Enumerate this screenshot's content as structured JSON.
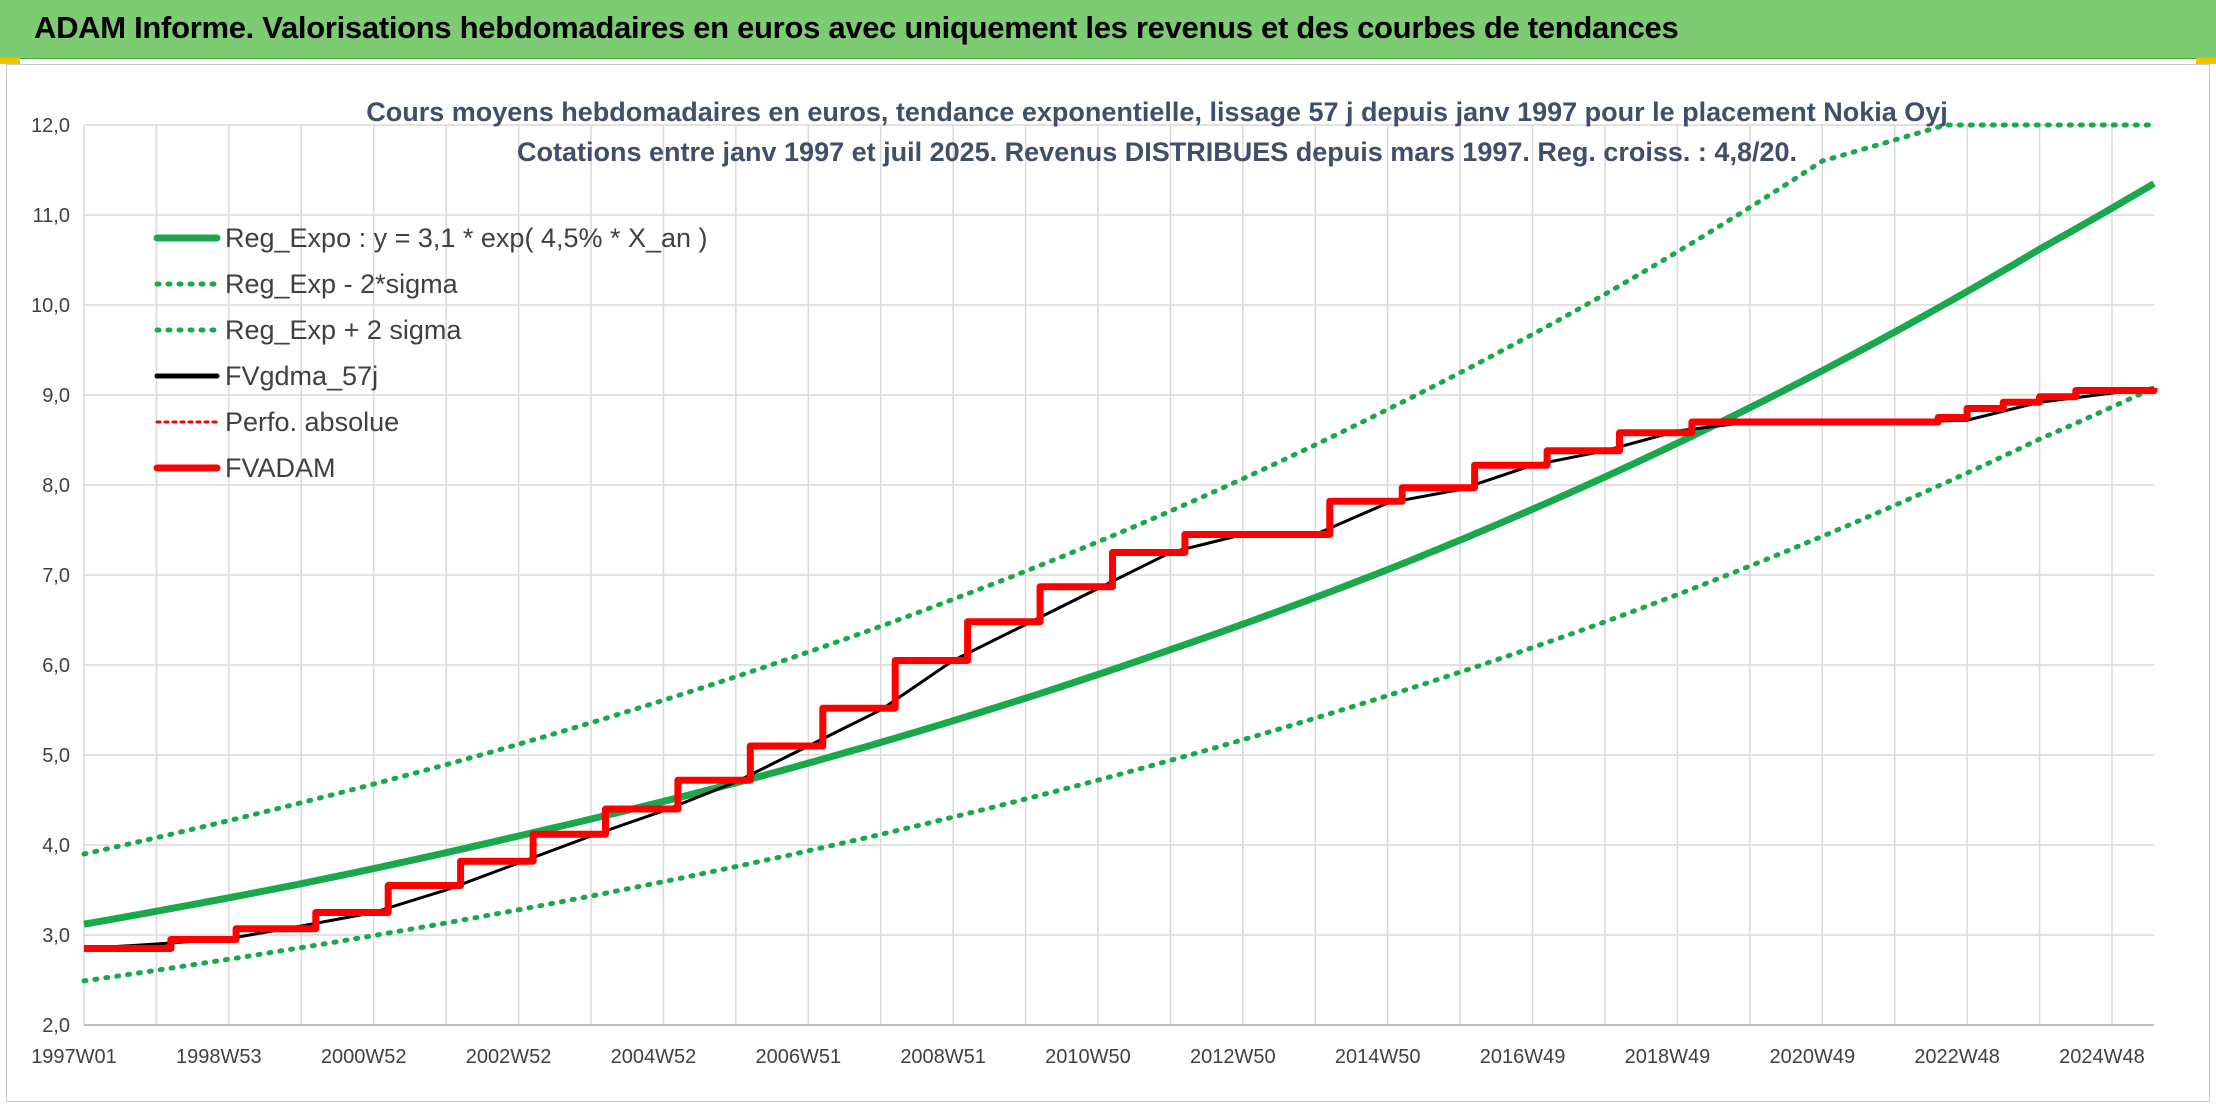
{
  "header": {
    "title": "ADAM Informe. Valorisations hebdomadaires en euros avec uniquement les revenus et des courbes de tendances"
  },
  "colors": {
    "header_bg": "#7dcb73",
    "green": "#19a84c",
    "black": "#000000",
    "red": "#ff0000",
    "grid": "#d9d9d9"
  },
  "chart_data": {
    "type": "line",
    "title_lines": [
      "Cours moyens hebdomadaires en euros, tendance exponentielle, lissage 57 j depuis janv 1997 pour le placement Nokia Oyj",
      "Cotations entre janv 1997 et juil 2025. Revenus DISTRIBUES depuis mars 1997. Reg. croiss. : 4,8/20."
    ],
    "ylim": [
      2.0,
      12.0
    ],
    "y_ticks": [
      "2,0",
      "3,0",
      "4,0",
      "5,0",
      "6,0",
      "7,0",
      "8,0",
      "9,0",
      "10,0",
      "11,0",
      "12,0"
    ],
    "x_range": [
      1997.0,
      2025.58
    ],
    "x_ticks": [
      {
        "label": "1997W01",
        "x": 1997.0
      },
      {
        "label": "1998W53",
        "x": 1999.0
      },
      {
        "label": "2000W52",
        "x": 2001.0
      },
      {
        "label": "2002W52",
        "x": 2003.0
      },
      {
        "label": "2004W52",
        "x": 2005.0
      },
      {
        "label": "2006W51",
        "x": 2007.0
      },
      {
        "label": "2008W51",
        "x": 2009.0
      },
      {
        "label": "2010W50",
        "x": 2011.0
      },
      {
        "label": "2012W50",
        "x": 2013.0
      },
      {
        "label": "2014W50",
        "x": 2015.0
      },
      {
        "label": "2016W49",
        "x": 2017.0
      },
      {
        "label": "2018W49",
        "x": 2019.0
      },
      {
        "label": "2020W49",
        "x": 2021.0
      },
      {
        "label": "2022W48",
        "x": 2023.0
      },
      {
        "label": "2024W48",
        "x": 2025.0
      }
    ],
    "grid": true,
    "legend_position": "top-left",
    "series": [
      {
        "name": "Reg_Expo : y = 3,1 * exp( 4,5% *  X_an )",
        "style": "solid-thick",
        "color": "#19a84c",
        "x": [
          1997.0,
          2000.0,
          2003.0,
          2006.0,
          2009.0,
          2012.0,
          2015.0,
          2018.0,
          2021.0,
          2024.0,
          2025.58
        ],
        "values": [
          3.12,
          3.57,
          4.1,
          4.69,
          5.38,
          6.17,
          7.06,
          8.09,
          9.27,
          10.62,
          11.35
        ]
      },
      {
        "name": "Reg_Exp - 2*sigma",
        "style": "dotted",
        "color": "#19a84c",
        "x": [
          1997.0,
          2000.0,
          2003.0,
          2006.0,
          2009.0,
          2012.0,
          2015.0,
          2018.0,
          2021.0,
          2024.0,
          2025.58
        ],
        "values": [
          2.49,
          2.86,
          3.28,
          3.76,
          4.31,
          4.94,
          5.66,
          6.48,
          7.43,
          8.51,
          9.08
        ]
      },
      {
        "name": "Reg_Exp + 2 sigma",
        "style": "dotted",
        "color": "#19a84c",
        "x": [
          1997.0,
          2000.0,
          2003.0,
          2006.0,
          2009.0,
          2012.0,
          2015.0,
          2018.0,
          2021.0,
          2022.7,
          2025.58
        ],
        "values": [
          3.9,
          4.47,
          5.12,
          5.87,
          6.73,
          7.71,
          8.84,
          10.12,
          11.6,
          12.0,
          12.0
        ]
      },
      {
        "name": "FVgdma_57j",
        "style": "solid",
        "color": "#000000",
        "x": [
          1997.0,
          1998.0,
          1999.0,
          2000.0,
          2001.0,
          2002.0,
          2003.0,
          2004.0,
          2005.0,
          2006.0,
          2007.0,
          2008.0,
          2009.0,
          2010.0,
          2011.0,
          2012.0,
          2013.0,
          2014.0,
          2015.0,
          2016.0,
          2017.0,
          2018.0,
          2019.0,
          2020.0,
          2021.0,
          2022.0,
          2023.0,
          2024.0,
          2025.58
        ],
        "values": [
          2.85,
          2.9,
          2.96,
          3.1,
          3.25,
          3.5,
          3.8,
          4.1,
          4.38,
          4.7,
          5.1,
          5.5,
          6.05,
          6.45,
          6.85,
          7.25,
          7.45,
          7.45,
          7.8,
          7.95,
          8.22,
          8.38,
          8.6,
          8.7,
          8.7,
          8.7,
          8.72,
          8.92,
          9.08
        ]
      },
      {
        "name": "Perfo. absolue",
        "style": "dotted",
        "color": "#ff0000",
        "x": [
          1997.0,
          2025.58
        ],
        "values": [
          2.85,
          9.08
        ]
      },
      {
        "name": "FVADAM",
        "style": "step-thick",
        "color": "#ff0000",
        "x": [
          1997.0,
          1998.2,
          1999.1,
          2000.2,
          2001.2,
          2002.2,
          2003.2,
          2004.2,
          2005.2,
          2006.2,
          2007.2,
          2008.2,
          2009.2,
          2010.2,
          2011.2,
          2012.2,
          2014.2,
          2015.2,
          2016.2,
          2017.2,
          2018.2,
          2019.2,
          2022.6,
          2023.0,
          2023.5,
          2024.0,
          2024.5,
          2025.58
        ],
        "values": [
          2.85,
          2.95,
          3.07,
          3.25,
          3.55,
          3.82,
          4.12,
          4.4,
          4.72,
          5.1,
          5.52,
          6.05,
          6.48,
          6.87,
          7.25,
          7.45,
          7.82,
          7.97,
          8.22,
          8.38,
          8.58,
          8.7,
          8.75,
          8.85,
          8.92,
          8.98,
          9.05,
          9.08
        ]
      }
    ]
  }
}
